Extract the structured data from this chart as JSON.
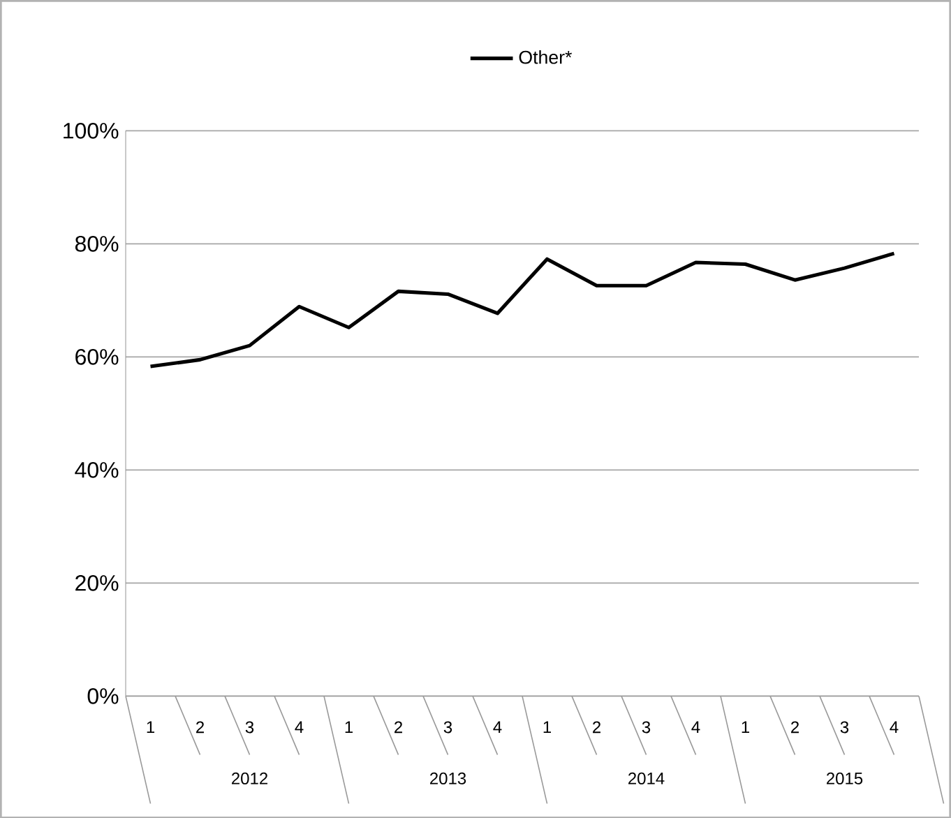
{
  "chart_data": {
    "type": "line",
    "categories": [
      "1",
      "2",
      "3",
      "4",
      "1",
      "2",
      "3",
      "4",
      "1",
      "2",
      "3",
      "4",
      "1",
      "2",
      "3",
      "4"
    ],
    "series": [
      {
        "name": "Other*",
        "color": "#000000",
        "values": [
          58.3,
          59.5,
          62.0,
          68.9,
          65.2,
          71.6,
          71.1,
          67.7,
          77.3,
          72.6,
          72.6,
          76.7,
          76.4,
          73.6,
          75.7,
          78.3
        ]
      }
    ],
    "ylim": [
      0,
      100
    ],
    "yticks": [
      {
        "value": 0,
        "label": "0%"
      },
      {
        "value": 20,
        "label": "20%"
      },
      {
        "value": 40,
        "label": "40%"
      },
      {
        "value": 60,
        "label": "60%"
      },
      {
        "value": 80,
        "label": "80%"
      },
      {
        "value": 100,
        "label": "100%"
      }
    ],
    "annotations": [
      "2012",
      "2013",
      "2014",
      "2015"
    ],
    "grid": "y",
    "legend": "top",
    "marker": "none",
    "line_style": "solid"
  }
}
